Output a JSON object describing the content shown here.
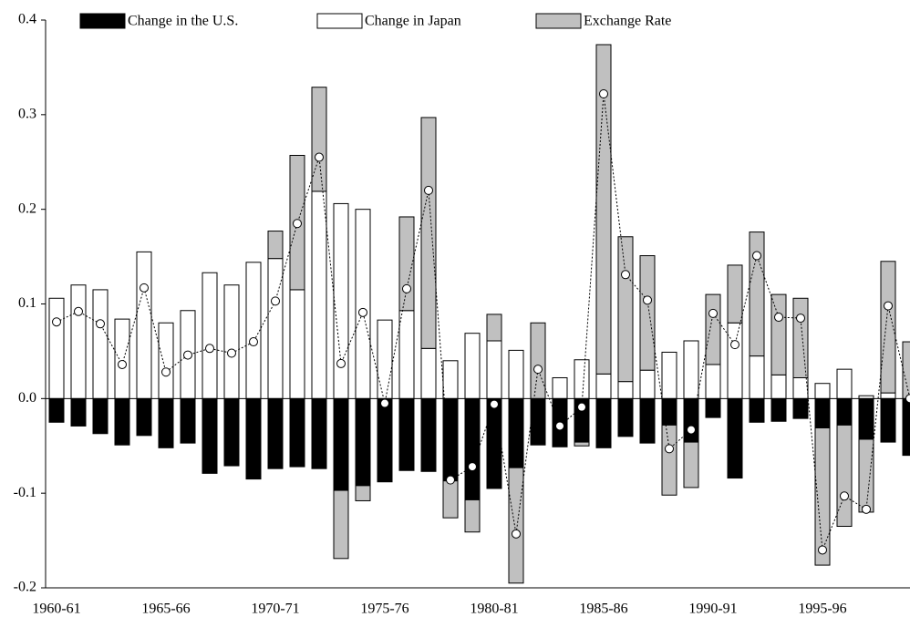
{
  "chart_data": {
    "type": "bar",
    "stacked": true,
    "legend": "top",
    "categories": [
      "1960-61",
      null,
      null,
      null,
      null,
      "1965-66",
      null,
      null,
      null,
      null,
      "1970-71",
      null,
      null,
      null,
      null,
      "1975-76",
      null,
      null,
      null,
      null,
      "1980-81",
      null,
      null,
      null,
      null,
      "1985-86",
      null,
      null,
      null,
      null,
      "1990-91",
      null,
      null,
      null,
      null,
      "1995-96",
      null,
      null,
      null,
      null
    ],
    "series": [
      {
        "name": "Change in the U.S.",
        "color": "#000000",
        "values": [
          -0.025,
          -0.029,
          -0.037,
          -0.049,
          -0.039,
          -0.052,
          -0.047,
          -0.079,
          -0.071,
          -0.085,
          -0.074,
          -0.072,
          -0.074,
          -0.097,
          -0.092,
          -0.088,
          -0.076,
          -0.077,
          -0.087,
          -0.107,
          -0.095,
          -0.073,
          -0.049,
          -0.051,
          -0.046,
          -0.052,
          -0.04,
          -0.047,
          -0.028,
          -0.046,
          -0.02,
          -0.084,
          -0.025,
          -0.024,
          -0.021,
          -0.031,
          -0.028,
          -0.043,
          -0.046,
          -0.06
        ]
      },
      {
        "name": "Change in Japan",
        "color": "#ffffff",
        "values": [
          0.106,
          0.12,
          0.115,
          0.084,
          0.155,
          0.08,
          0.093,
          0.133,
          0.12,
          0.144,
          0.148,
          0.115,
          0.219,
          0.206,
          0.2,
          0.083,
          0.093,
          0.053,
          0.04,
          0.069,
          0.061,
          0.051,
          0,
          0.022,
          0.041,
          0.026,
          0.018,
          0.03,
          0.049,
          0.061,
          0.036,
          0.08,
          0.045,
          0.025,
          0.022,
          0.016,
          0.031,
          0.003,
          0.006,
          0
        ]
      },
      {
        "name": "Exchange Rate",
        "color": "#c0c0c0",
        "values": [
          0,
          0,
          0,
          0,
          0,
          0,
          0,
          0,
          0,
          0,
          0.029,
          0.142,
          0.11,
          -0.072,
          -0.016,
          0,
          0.099,
          0.244,
          -0.039,
          -0.034,
          0.028,
          -0.122,
          0.08,
          0,
          -0.004,
          0.348,
          0.153,
          0.121,
          -0.074,
          -0.048,
          0.074,
          0.061,
          0.131,
          0.085,
          0.084,
          -0.145,
          -0.107,
          -0.077,
          0.139,
          0.06
        ]
      },
      {
        "type": "line",
        "color": "#000000",
        "line_style": "dotted",
        "values": [
          0.081,
          0.092,
          0.079,
          0.036,
          0.117,
          0.028,
          0.046,
          0.053,
          0.048,
          0.06,
          0.103,
          0.185,
          0.255,
          0.037,
          0.091,
          -0.005,
          0.116,
          0.22,
          -0.086,
          -0.072,
          -0.006,
          -0.143,
          0.031,
          -0.029,
          -0.009,
          0.322,
          0.131,
          0.104,
          -0.053,
          -0.033,
          0.09,
          0.057,
          0.151,
          0.086,
          0.085,
          -0.16,
          -0.103,
          -0.117,
          0.098,
          0.0
        ]
      }
    ],
    "ylim": [
      -0.2,
      0.4
    ],
    "yticks": [
      0.4,
      0.3,
      0.2,
      0.1,
      {
        "value": 0,
        "label": "0.0"
      },
      -0.1,
      -0.2
    ]
  }
}
